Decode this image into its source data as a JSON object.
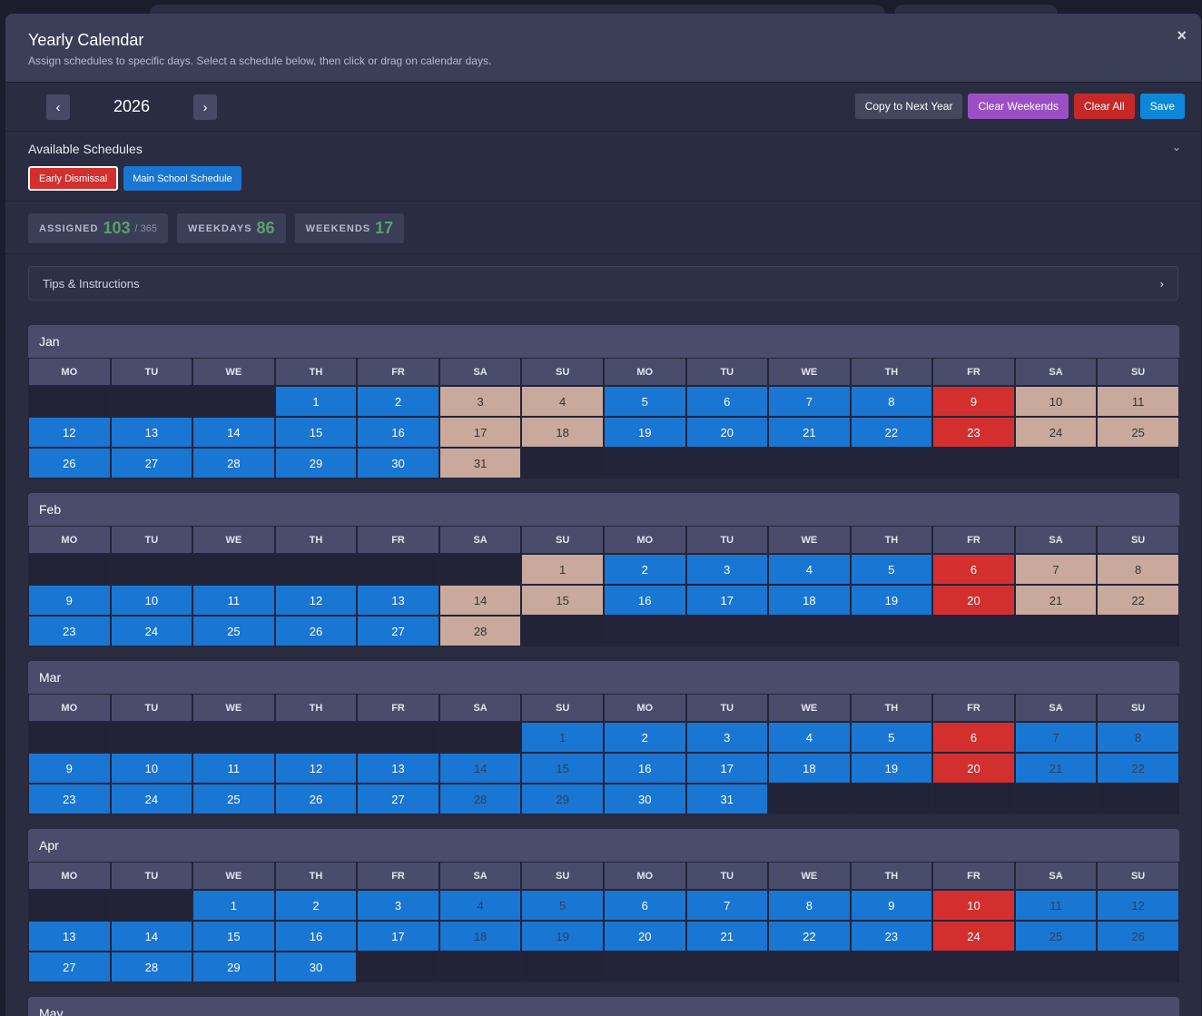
{
  "modal": {
    "title": "Yearly Calendar",
    "subtitle": "Assign schedules to specific days. Select a schedule below, then click or drag on calendar days.",
    "close_label": "×"
  },
  "toolbar": {
    "prev_label": "‹",
    "year": "2026",
    "next_label": "›",
    "copy_label": "Copy to Next Year",
    "clear_weekends_label": "Clear Weekends",
    "clear_all_label": "Clear All",
    "save_label": "Save"
  },
  "schedules": {
    "title": "Available Schedules",
    "collapse_label": "⌄",
    "items": [
      {
        "label": "Early Dismissal",
        "color": "#d32f2f",
        "selected": true
      },
      {
        "label": "Main School Schedule",
        "color": "#1976d2",
        "selected": false
      }
    ]
  },
  "stats": {
    "assigned_label": "ASSIGNED",
    "assigned_value": "103",
    "assigned_total": "/ 365",
    "weekdays_label": "WEEKDAYS",
    "weekdays_value": "86",
    "weekends_label": "WEEKENDS",
    "weekends_value": "17"
  },
  "tips": {
    "label": "Tips & Instructions",
    "chevron": "›"
  },
  "colors": {
    "main": "#1976d2",
    "early": "#d32f2f",
    "weekend": "#c8a99c",
    "action_purple": "#9c4fc4",
    "action_red": "#c62828",
    "action_blue": "#0d87d9",
    "stat_value": "#5aa06a"
  },
  "weekday_headers": [
    "MO",
    "TU",
    "WE",
    "TH",
    "FR",
    "SA",
    "SU",
    "MO",
    "TU",
    "WE",
    "TH",
    "FR",
    "SA",
    "SU"
  ],
  "months": [
    {
      "name": "Jan",
      "rows": [
        [
          [
            "",
            ""
          ],
          [
            "",
            ""
          ],
          [
            "",
            ""
          ],
          [
            "1",
            "m"
          ],
          [
            "2",
            "m"
          ],
          [
            "3",
            "w"
          ],
          [
            "4",
            "w"
          ],
          [
            "5",
            "m"
          ],
          [
            "6",
            "m"
          ],
          [
            "7",
            "m"
          ],
          [
            "8",
            "m"
          ],
          [
            "9",
            "e"
          ],
          [
            "10",
            "w"
          ],
          [
            "11",
            "w"
          ]
        ],
        [
          [
            "12",
            "m"
          ],
          [
            "13",
            "m"
          ],
          [
            "14",
            "m"
          ],
          [
            "15",
            "m"
          ],
          [
            "16",
            "m"
          ],
          [
            "17",
            "w"
          ],
          [
            "18",
            "w"
          ],
          [
            "19",
            "m"
          ],
          [
            "20",
            "m"
          ],
          [
            "21",
            "m"
          ],
          [
            "22",
            "m"
          ],
          [
            "23",
            "e"
          ],
          [
            "24",
            "w"
          ],
          [
            "25",
            "w"
          ]
        ],
        [
          [
            "26",
            "m"
          ],
          [
            "27",
            "m"
          ],
          [
            "28",
            "m"
          ],
          [
            "29",
            "m"
          ],
          [
            "30",
            "m"
          ],
          [
            "31",
            "w"
          ],
          [
            "",
            ""
          ],
          [
            "",
            "n"
          ],
          [
            "",
            "n"
          ],
          [
            "",
            "n"
          ],
          [
            "",
            "n"
          ],
          [
            "",
            "n"
          ],
          [
            "",
            "n"
          ],
          [
            "",
            "n"
          ]
        ]
      ]
    },
    {
      "name": "Feb",
      "rows": [
        [
          [
            "",
            ""
          ],
          [
            "",
            ""
          ],
          [
            "",
            ""
          ],
          [
            "",
            ""
          ],
          [
            "",
            ""
          ],
          [
            "",
            ""
          ],
          [
            "1",
            "w"
          ],
          [
            "2",
            "m"
          ],
          [
            "3",
            "m"
          ],
          [
            "4",
            "m"
          ],
          [
            "5",
            "m"
          ],
          [
            "6",
            "e"
          ],
          [
            "7",
            "w"
          ],
          [
            "8",
            "w"
          ]
        ],
        [
          [
            "9",
            "m"
          ],
          [
            "10",
            "m"
          ],
          [
            "11",
            "m"
          ],
          [
            "12",
            "m"
          ],
          [
            "13",
            "m"
          ],
          [
            "14",
            "w"
          ],
          [
            "15",
            "w"
          ],
          [
            "16",
            "m"
          ],
          [
            "17",
            "m"
          ],
          [
            "18",
            "m"
          ],
          [
            "19",
            "m"
          ],
          [
            "20",
            "e"
          ],
          [
            "21",
            "w"
          ],
          [
            "22",
            "w"
          ]
        ],
        [
          [
            "23",
            "m"
          ],
          [
            "24",
            "m"
          ],
          [
            "25",
            "m"
          ],
          [
            "26",
            "m"
          ],
          [
            "27",
            "m"
          ],
          [
            "28",
            "w"
          ],
          [
            "",
            ""
          ],
          [
            "",
            "n"
          ],
          [
            "",
            "n"
          ],
          [
            "",
            "n"
          ],
          [
            "",
            "n"
          ],
          [
            "",
            "n"
          ],
          [
            "",
            "n"
          ],
          [
            "",
            "n"
          ]
        ]
      ]
    },
    {
      "name": "Mar",
      "rows": [
        [
          [
            "",
            ""
          ],
          [
            "",
            ""
          ],
          [
            "",
            ""
          ],
          [
            "",
            ""
          ],
          [
            "",
            ""
          ],
          [
            "",
            ""
          ],
          [
            "1",
            "mw"
          ],
          [
            "2",
            "m"
          ],
          [
            "3",
            "m"
          ],
          [
            "4",
            "m"
          ],
          [
            "5",
            "m"
          ],
          [
            "6",
            "e"
          ],
          [
            "7",
            "mw"
          ],
          [
            "8",
            "mw"
          ]
        ],
        [
          [
            "9",
            "m"
          ],
          [
            "10",
            "m"
          ],
          [
            "11",
            "m"
          ],
          [
            "12",
            "m"
          ],
          [
            "13",
            "m"
          ],
          [
            "14",
            "mw"
          ],
          [
            "15",
            "mw"
          ],
          [
            "16",
            "m"
          ],
          [
            "17",
            "m"
          ],
          [
            "18",
            "m"
          ],
          [
            "19",
            "m"
          ],
          [
            "20",
            "e"
          ],
          [
            "21",
            "mw"
          ],
          [
            "22",
            "mw"
          ]
        ],
        [
          [
            "23",
            "m"
          ],
          [
            "24",
            "m"
          ],
          [
            "25",
            "m"
          ],
          [
            "26",
            "m"
          ],
          [
            "27",
            "m"
          ],
          [
            "28",
            "mw"
          ],
          [
            "29",
            "mw"
          ],
          [
            "30",
            "m"
          ],
          [
            "31",
            "m"
          ],
          [
            "",
            ""
          ],
          [
            "",
            ""
          ],
          [
            "",
            ""
          ],
          [
            "",
            ""
          ],
          [
            "",
            ""
          ]
        ]
      ]
    },
    {
      "name": "Apr",
      "rows": [
        [
          [
            "",
            ""
          ],
          [
            "",
            ""
          ],
          [
            "1",
            "m"
          ],
          [
            "2",
            "m"
          ],
          [
            "3",
            "m"
          ],
          [
            "4",
            "mw"
          ],
          [
            "5",
            "mw"
          ],
          [
            "6",
            "m"
          ],
          [
            "7",
            "m"
          ],
          [
            "8",
            "m"
          ],
          [
            "9",
            "m"
          ],
          [
            "10",
            "e"
          ],
          [
            "11",
            "mw"
          ],
          [
            "12",
            "mw"
          ]
        ],
        [
          [
            "13",
            "m"
          ],
          [
            "14",
            "m"
          ],
          [
            "15",
            "m"
          ],
          [
            "16",
            "m"
          ],
          [
            "17",
            "m"
          ],
          [
            "18",
            "mw"
          ],
          [
            "19",
            "mw"
          ],
          [
            "20",
            "m"
          ],
          [
            "21",
            "m"
          ],
          [
            "22",
            "m"
          ],
          [
            "23",
            "m"
          ],
          [
            "24",
            "e"
          ],
          [
            "25",
            "mw"
          ],
          [
            "26",
            "mw"
          ]
        ],
        [
          [
            "27",
            "m"
          ],
          [
            "28",
            "m"
          ],
          [
            "29",
            "m"
          ],
          [
            "30",
            "m"
          ],
          [
            "",
            ""
          ],
          [
            "",
            ""
          ],
          [
            "",
            ""
          ],
          [
            "",
            "n"
          ],
          [
            "",
            "n"
          ],
          [
            "",
            "n"
          ],
          [
            "",
            "n"
          ],
          [
            "",
            "n"
          ],
          [
            "",
            "n"
          ],
          [
            "",
            "n"
          ]
        ]
      ]
    },
    {
      "name": "May",
      "rows": []
    }
  ]
}
